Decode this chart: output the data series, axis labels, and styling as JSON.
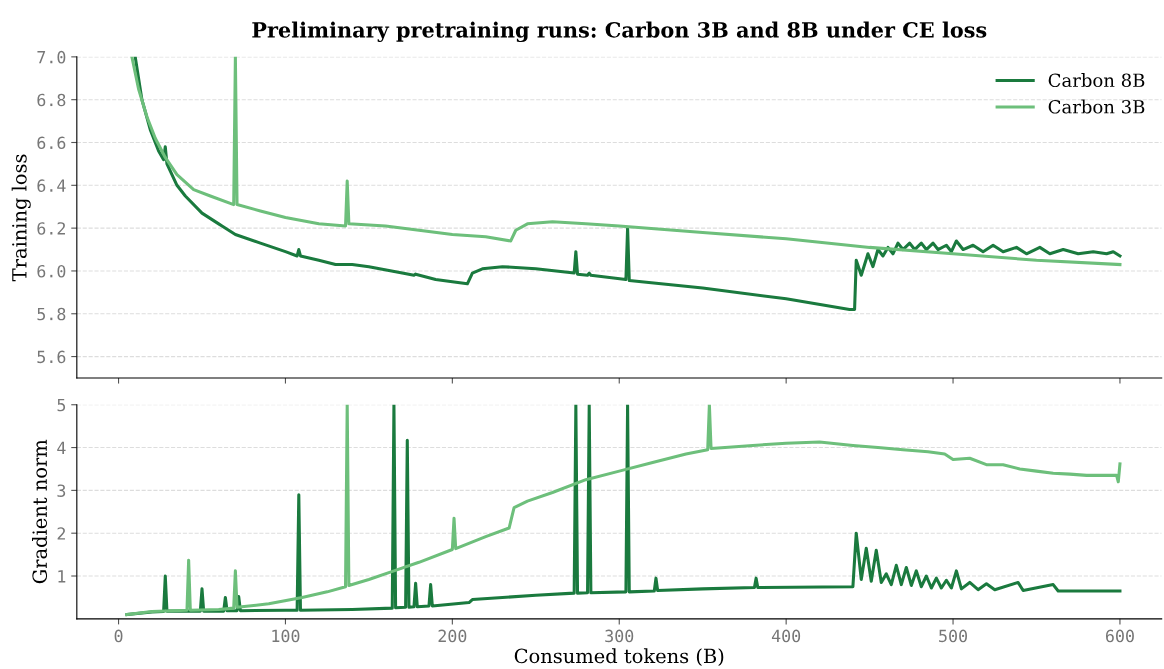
{
  "chart_data": [
    {
      "type": "line",
      "title": "Preliminary pretraining runs: Carbon 3B and 8B under CE loss",
      "ylabel": "Training loss",
      "xlim": [
        -25,
        625
      ],
      "xticks": [
        0,
        100,
        200,
        300,
        400,
        500,
        600
      ],
      "ylim": [
        5.5,
        7.0
      ],
      "yticks": [
        {
          "value": 5.6,
          "label": "5.6"
        },
        {
          "value": 5.8,
          "label": "5.8"
        },
        {
          "value": 6.0,
          "label": "6.0"
        },
        {
          "value": 6.2,
          "label": "6.2"
        },
        {
          "value": 6.4,
          "label": "6.4"
        },
        {
          "value": 6.6,
          "label": "6.6"
        },
        {
          "value": 6.8,
          "label": "6.8"
        },
        {
          "value": 7.0,
          "label": "7.0"
        }
      ],
      "tick_labels": "y",
      "grid": "y",
      "legend": "top right",
      "marker": "none",
      "line_style": "solid",
      "series": [
        {
          "name": "Carbon 8B",
          "color": "#1a7a3e",
          "x": [
            10,
            14,
            19,
            24,
            27,
            28,
            29,
            35,
            40,
            50,
            60,
            62,
            70,
            85,
            100,
            107,
            108,
            109,
            120,
            130,
            140,
            150,
            170,
            177,
            178,
            190,
            200,
            209,
            212,
            218,
            230,
            250,
            273,
            274,
            275,
            281,
            282,
            283,
            304,
            305,
            306,
            350,
            400,
            438,
            441,
            442,
            445,
            449,
            452,
            455,
            458,
            461,
            464,
            467,
            470,
            474,
            477,
            481,
            484,
            488,
            491,
            496,
            499,
            502,
            506,
            512,
            518,
            524,
            530,
            538,
            544,
            552,
            558,
            566,
            575,
            584,
            592,
            596,
            600
          ],
          "values": [
            7.0,
            6.8,
            6.66,
            6.56,
            6.52,
            6.58,
            6.5,
            6.4,
            6.35,
            6.27,
            6.22,
            6.21,
            6.17,
            6.13,
            6.09,
            6.07,
            6.1,
            6.07,
            6.05,
            6.03,
            6.03,
            6.02,
            5.99,
            5.98,
            5.985,
            5.96,
            5.95,
            5.94,
            5.99,
            6.01,
            6.02,
            6.01,
            5.99,
            6.09,
            5.985,
            5.98,
            5.99,
            5.98,
            5.96,
            6.2,
            5.955,
            5.92,
            5.87,
            5.82,
            5.82,
            6.05,
            5.98,
            6.08,
            6.02,
            6.1,
            6.07,
            6.11,
            6.08,
            6.13,
            6.1,
            6.13,
            6.1,
            6.13,
            6.1,
            6.13,
            6.1,
            6.12,
            6.09,
            6.14,
            6.1,
            6.12,
            6.09,
            6.12,
            6.09,
            6.11,
            6.08,
            6.11,
            6.08,
            6.1,
            6.08,
            6.09,
            6.08,
            6.09,
            6.07
          ]
        },
        {
          "name": "Carbon 3B",
          "color": "#6dbf7b",
          "x": [
            8,
            12,
            17,
            22,
            28,
            35,
            45,
            55,
            69,
            70,
            71,
            85,
            100,
            120,
            136,
            137,
            138,
            160,
            180,
            200,
            220,
            235,
            238,
            245,
            260,
            280,
            300,
            350,
            400,
            450,
            500,
            550,
            600
          ],
          "values": [
            7.0,
            6.85,
            6.72,
            6.62,
            6.53,
            6.45,
            6.38,
            6.35,
            6.31,
            7.0,
            6.31,
            6.28,
            6.25,
            6.22,
            6.21,
            6.42,
            6.22,
            6.21,
            6.19,
            6.17,
            6.16,
            6.14,
            6.19,
            6.22,
            6.23,
            6.22,
            6.21,
            6.18,
            6.15,
            6.11,
            6.08,
            6.05,
            6.03
          ]
        }
      ]
    },
    {
      "type": "line",
      "xlabel": "Consumed tokens (B)",
      "ylabel": "Gradient norm",
      "xlim": [
        -25,
        625
      ],
      "xticks": [
        0,
        100,
        200,
        300,
        400,
        500,
        600
      ],
      "ylim": [
        0,
        5
      ],
      "yticks": [
        1,
        2,
        3,
        4,
        5
      ],
      "grid": "y",
      "marker": "none",
      "line_style": "solid",
      "series": [
        {
          "color": "#1a7a3e",
          "x": [
            5,
            20,
            27,
            28,
            29,
            49,
            50,
            51,
            63,
            64,
            65,
            71,
            72,
            73,
            100,
            107,
            108,
            109,
            140,
            164,
            165,
            166,
            172,
            173,
            174,
            177,
            178,
            179,
            186,
            187,
            188,
            210,
            212,
            250,
            273,
            274,
            275,
            281,
            282,
            283,
            304,
            305,
            306,
            321,
            322,
            323,
            350,
            381,
            382,
            383,
            440,
            442,
            445,
            448,
            451,
            454,
            457,
            460,
            463,
            466,
            469,
            472,
            475,
            478,
            481,
            484,
            487,
            490,
            493,
            496,
            499,
            502,
            505,
            510,
            515,
            520,
            525,
            539,
            542,
            560,
            563,
            600
          ],
          "values": [
            0.1,
            0.16,
            0.17,
            1.0,
            0.18,
            0.18,
            0.7,
            0.18,
            0.18,
            0.5,
            0.19,
            0.19,
            0.52,
            0.19,
            0.2,
            0.2,
            2.9,
            0.2,
            0.22,
            0.25,
            5,
            0.26,
            0.27,
            4.17,
            0.27,
            0.28,
            0.83,
            0.28,
            0.3,
            0.8,
            0.3,
            0.38,
            0.45,
            0.55,
            0.6,
            5,
            0.6,
            0.61,
            5,
            0.61,
            0.63,
            5,
            0.63,
            0.65,
            0.95,
            0.66,
            0.7,
            0.73,
            0.95,
            0.73,
            0.75,
            2.0,
            0.92,
            1.65,
            0.88,
            1.6,
            0.85,
            1.05,
            0.8,
            1.25,
            0.8,
            1.2,
            0.78,
            1.12,
            0.75,
            1.0,
            0.72,
            0.95,
            0.72,
            0.9,
            0.72,
            1.12,
            0.7,
            0.85,
            0.68,
            0.82,
            0.68,
            0.85,
            0.66,
            0.8,
            0.65,
            0.65
          ]
        },
        {
          "color": "#6dbf7b",
          "x": [
            5,
            20,
            41,
            42,
            43,
            60,
            69,
            70,
            71,
            90,
            110,
            125,
            136,
            137,
            138,
            150,
            165,
            180,
            200,
            201,
            202,
            220,
            234,
            237,
            245,
            260,
            280,
            300,
            320,
            340,
            353,
            354,
            355,
            380,
            400,
            420,
            440,
            455,
            470,
            485,
            495,
            500,
            510,
            520,
            530,
            540,
            550,
            560,
            570,
            580,
            590,
            598,
            599,
            600
          ],
          "values": [
            0.1,
            0.17,
            0.2,
            1.37,
            0.2,
            0.22,
            0.25,
            1.12,
            0.27,
            0.35,
            0.5,
            0.63,
            0.75,
            5,
            0.78,
            0.92,
            1.12,
            1.32,
            1.62,
            2.35,
            1.64,
            1.92,
            2.12,
            2.6,
            2.75,
            2.95,
            3.25,
            3.45,
            3.65,
            3.85,
            3.95,
            5,
            3.98,
            4.05,
            4.1,
            4.13,
            4.05,
            4.0,
            3.95,
            3.9,
            3.85,
            3.72,
            3.75,
            3.6,
            3.6,
            3.5,
            3.45,
            3.4,
            3.38,
            3.35,
            3.35,
            3.35,
            3.2,
            3.62
          ]
        }
      ]
    }
  ]
}
